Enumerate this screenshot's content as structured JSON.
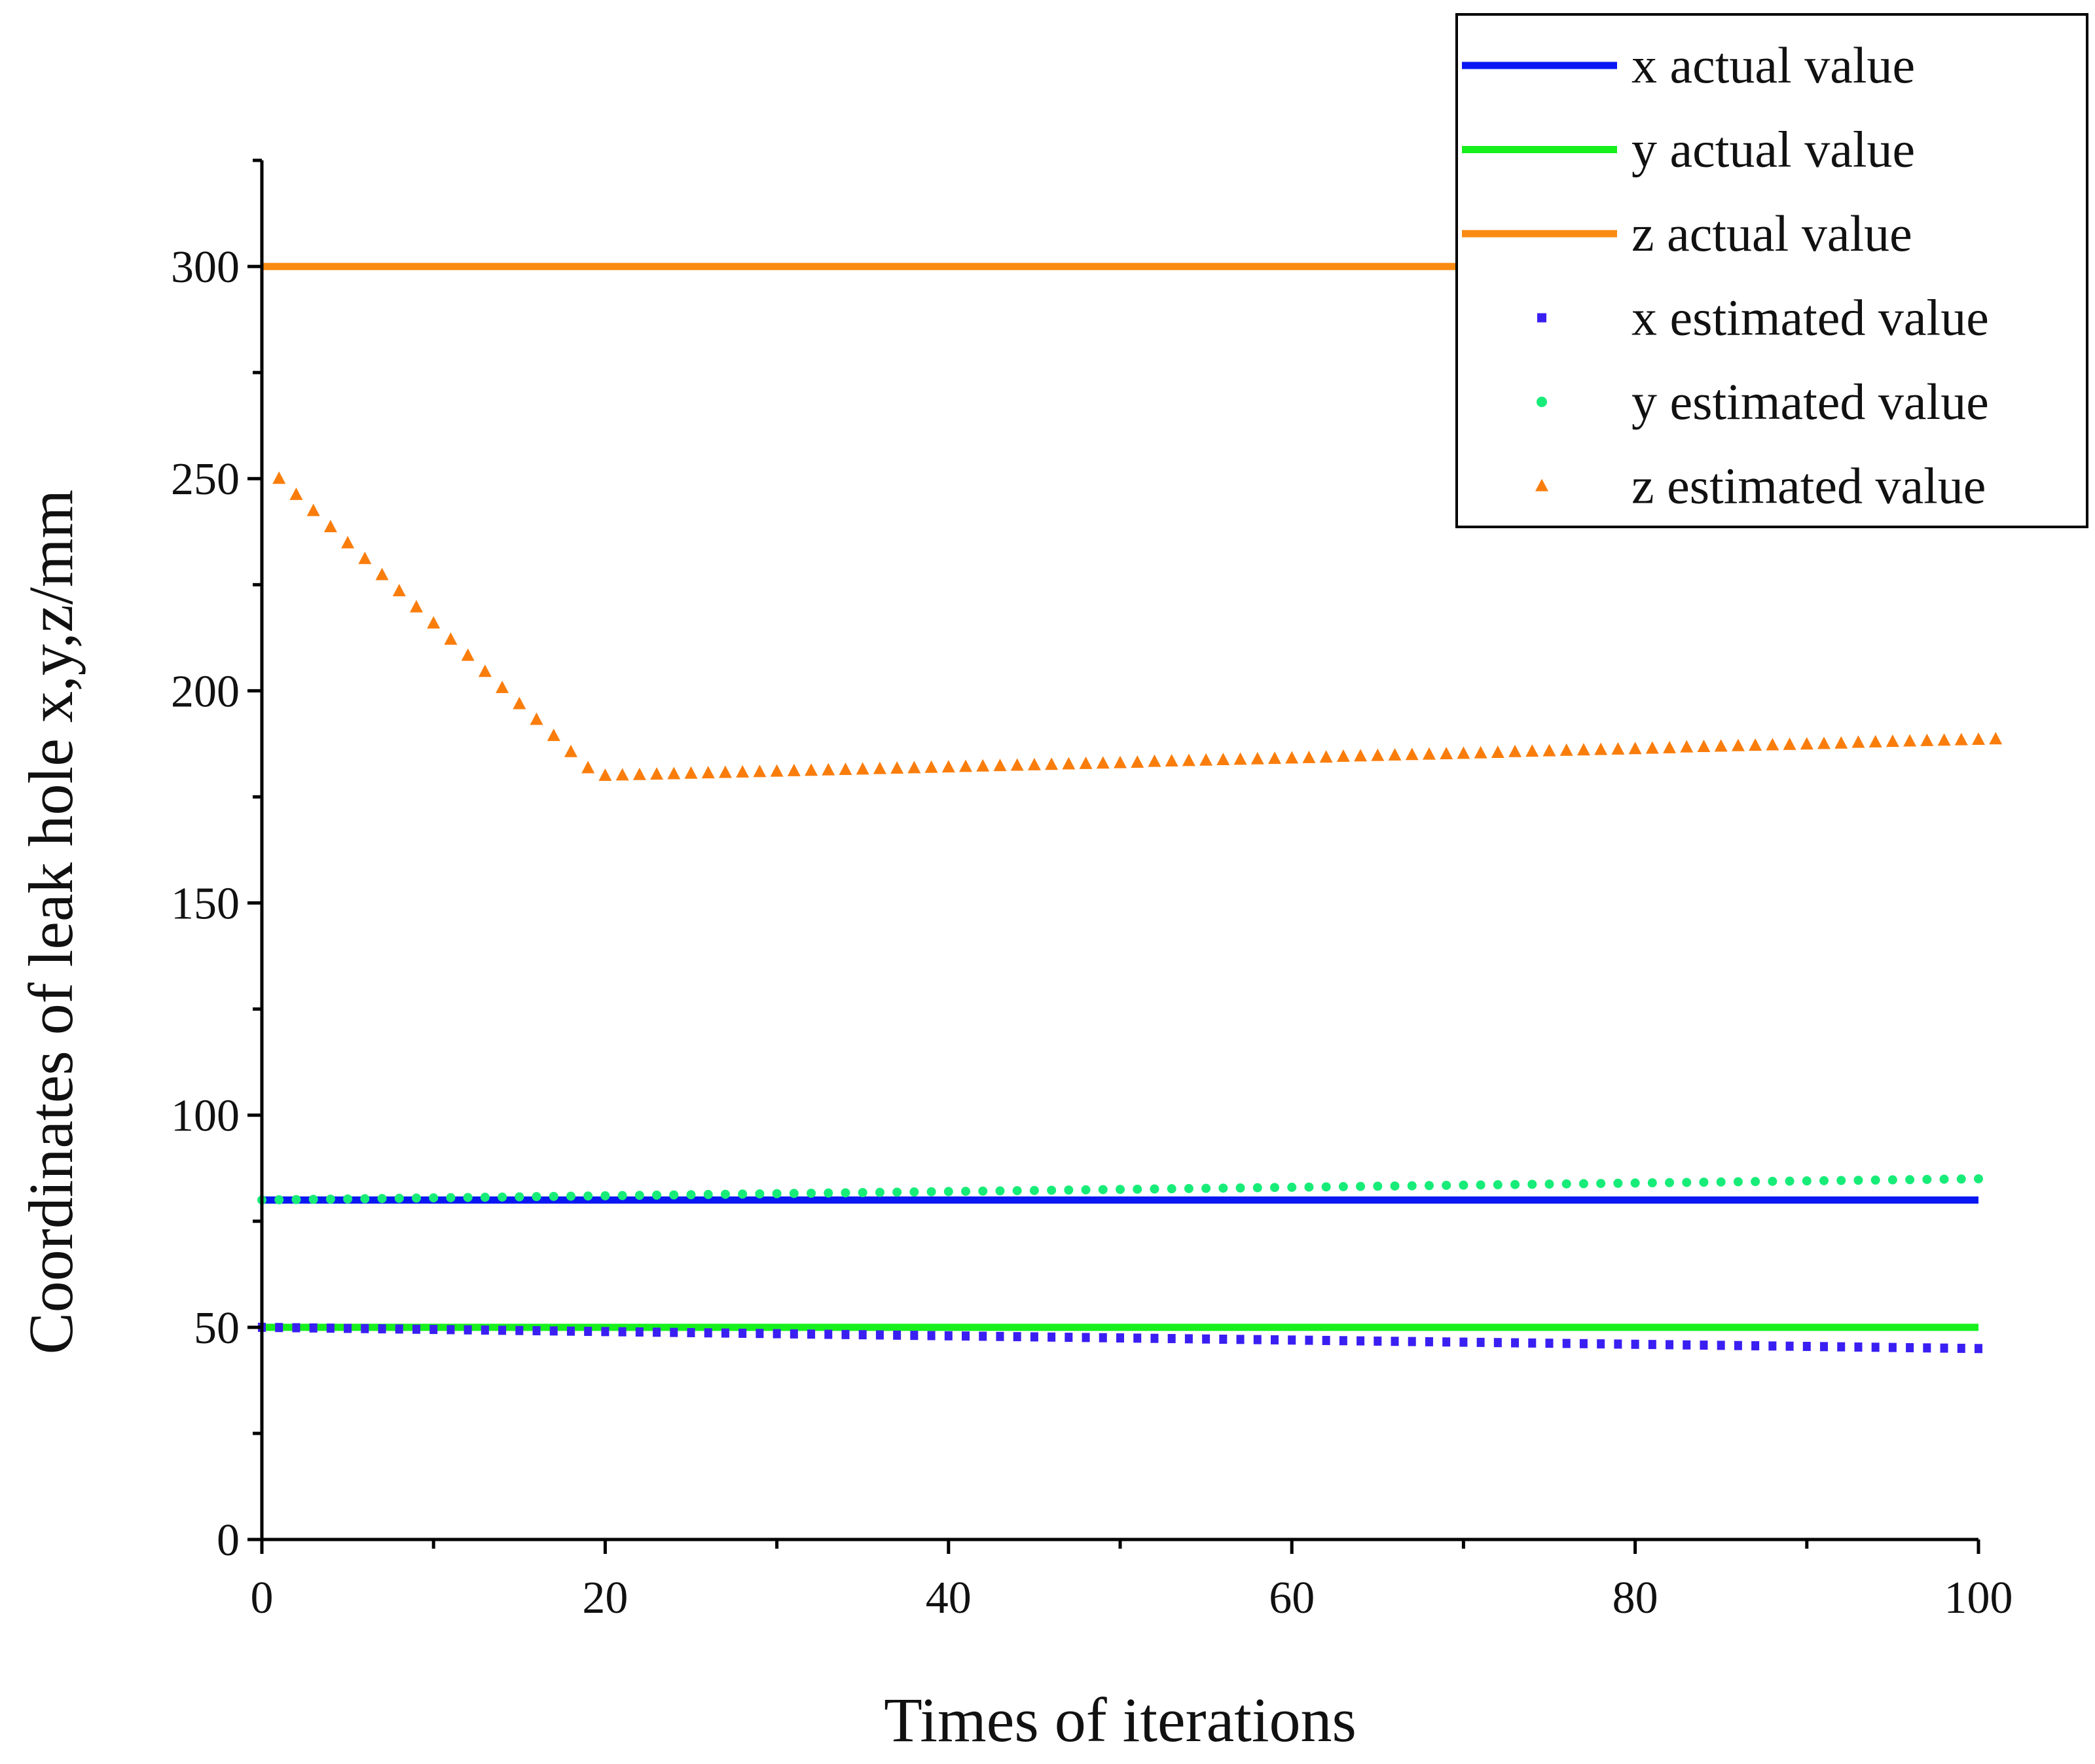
{
  "chart_data": {
    "type": "line",
    "title": "",
    "xlabel": "Times of iterations",
    "ylabel": "Coordinates of leak hole x,y,z/mm",
    "xlim": [
      0,
      100
    ],
    "ylim": [
      0,
      325
    ],
    "xticks": [
      0,
      20,
      40,
      60,
      80,
      100
    ],
    "yticks": [
      0,
      50,
      100,
      150,
      200,
      250,
      300
    ],
    "xtick_labels": [
      "0",
      "20",
      "40",
      "60",
      "80",
      "100"
    ],
    "ytick_labels": [
      "0",
      "50",
      "100",
      "150",
      "200",
      "250",
      "300"
    ],
    "grid": false,
    "legend_position": "top-right",
    "series": [
      {
        "name": "x actual value",
        "style": "line",
        "color": "#0a17f2",
        "x": [
          0,
          100
        ],
        "values": [
          80,
          80
        ]
      },
      {
        "name": "y actual value",
        "style": "line",
        "color": "#16f01d",
        "x": [
          0,
          100
        ],
        "values": [
          50,
          50
        ]
      },
      {
        "name": "z actual value",
        "style": "line",
        "color": "#fa8a12",
        "x": [
          0,
          100
        ],
        "values": [
          300,
          300
        ]
      },
      {
        "name": "x estimated value",
        "style": "square",
        "color": "#3a1ff2",
        "x_start": 0,
        "x_step": 1,
        "values": [
          50.0,
          49.95,
          49.9,
          49.85,
          49.8,
          49.75,
          49.7,
          49.65,
          49.6,
          49.55,
          49.5,
          49.45,
          49.4,
          49.35,
          49.3,
          49.25,
          49.2,
          49.15,
          49.1,
          49.05,
          49.0,
          48.95,
          48.9,
          48.85,
          48.8,
          48.75,
          48.7,
          48.65,
          48.6,
          48.55,
          48.5,
          48.45,
          48.4,
          48.35,
          48.3,
          48.25,
          48.2,
          48.15,
          48.1,
          48.05,
          48.0,
          47.95,
          47.9,
          47.85,
          47.8,
          47.75,
          47.7,
          47.65,
          47.6,
          47.55,
          47.5,
          47.45,
          47.4,
          47.35,
          47.3,
          47.25,
          47.2,
          47.15,
          47.1,
          47.05,
          47.0,
          46.95,
          46.9,
          46.85,
          46.8,
          46.75,
          46.7,
          46.65,
          46.6,
          46.55,
          46.5,
          46.45,
          46.4,
          46.35,
          46.3,
          46.25,
          46.2,
          46.15,
          46.1,
          46.05,
          46.0,
          45.95,
          45.9,
          45.85,
          45.8,
          45.75,
          45.7,
          45.65,
          45.6,
          45.55,
          45.5,
          45.45,
          45.4,
          45.35,
          45.3,
          45.25,
          45.2,
          45.15,
          45.1,
          45.05,
          45.0
        ]
      },
      {
        "name": "y estimated value",
        "style": "circle",
        "color": "#18ec78",
        "x_start": 0,
        "x_step": 1,
        "values": [
          80.0,
          80.05,
          80.1,
          80.15,
          80.2,
          80.25,
          80.3,
          80.35,
          80.4,
          80.45,
          80.5,
          80.55,
          80.6,
          80.65,
          80.7,
          80.75,
          80.8,
          80.85,
          80.9,
          80.95,
          81.0,
          81.05,
          81.1,
          81.15,
          81.2,
          81.25,
          81.3,
          81.35,
          81.4,
          81.45,
          81.5,
          81.55,
          81.6,
          81.65,
          81.7,
          81.75,
          81.8,
          81.85,
          81.9,
          81.95,
          82.0,
          82.05,
          82.1,
          82.15,
          82.2,
          82.25,
          82.3,
          82.35,
          82.4,
          82.45,
          82.5,
          82.55,
          82.6,
          82.65,
          82.7,
          82.75,
          82.8,
          82.85,
          82.9,
          82.95,
          83.0,
          83.05,
          83.1,
          83.15,
          83.2,
          83.25,
          83.3,
          83.35,
          83.4,
          83.45,
          83.5,
          83.55,
          83.6,
          83.65,
          83.7,
          83.75,
          83.8,
          83.85,
          83.9,
          83.95,
          84.0,
          84.05,
          84.1,
          84.15,
          84.2,
          84.25,
          84.3,
          84.35,
          84.4,
          84.45,
          84.5,
          84.55,
          84.6,
          84.65,
          84.7,
          84.75,
          84.8,
          84.85,
          84.9,
          84.95,
          85.0
        ]
      },
      {
        "name": "z estimated value",
        "style": "triangle",
        "color": "#fa7d0c",
        "x_start": 1,
        "x_step": 1,
        "values": [
          250.0,
          246.2,
          242.4,
          238.6,
          234.8,
          231.1,
          227.3,
          223.5,
          219.7,
          215.9,
          212.1,
          208.3,
          204.5,
          200.7,
          196.9,
          193.2,
          189.4,
          185.6,
          181.8,
          180.0,
          180.1,
          180.2,
          180.3,
          180.4,
          180.5,
          180.6,
          180.7,
          180.8,
          180.9,
          181.0,
          181.1,
          181.2,
          181.3,
          181.4,
          181.5,
          181.6,
          181.7,
          181.8,
          181.9,
          182.0,
          182.1,
          182.2,
          182.3,
          182.4,
          182.5,
          182.6,
          182.7,
          182.8,
          182.9,
          183.0,
          183.1,
          183.3,
          183.4,
          183.5,
          183.6,
          183.7,
          183.8,
          183.9,
          184.0,
          184.1,
          184.2,
          184.3,
          184.5,
          184.6,
          184.7,
          184.8,
          184.9,
          185.0,
          185.1,
          185.2,
          185.3,
          185.4,
          185.6,
          185.7,
          185.8,
          185.9,
          186.0,
          186.1,
          186.2,
          186.3,
          186.4,
          186.5,
          186.7,
          186.8,
          186.9,
          187.0,
          187.1,
          187.2,
          187.3,
          187.4,
          187.5,
          187.6,
          187.8,
          187.9,
          188.0,
          188.1,
          188.2,
          188.3,
          188.4,
          188.5,
          188.6
        ]
      }
    ]
  }
}
